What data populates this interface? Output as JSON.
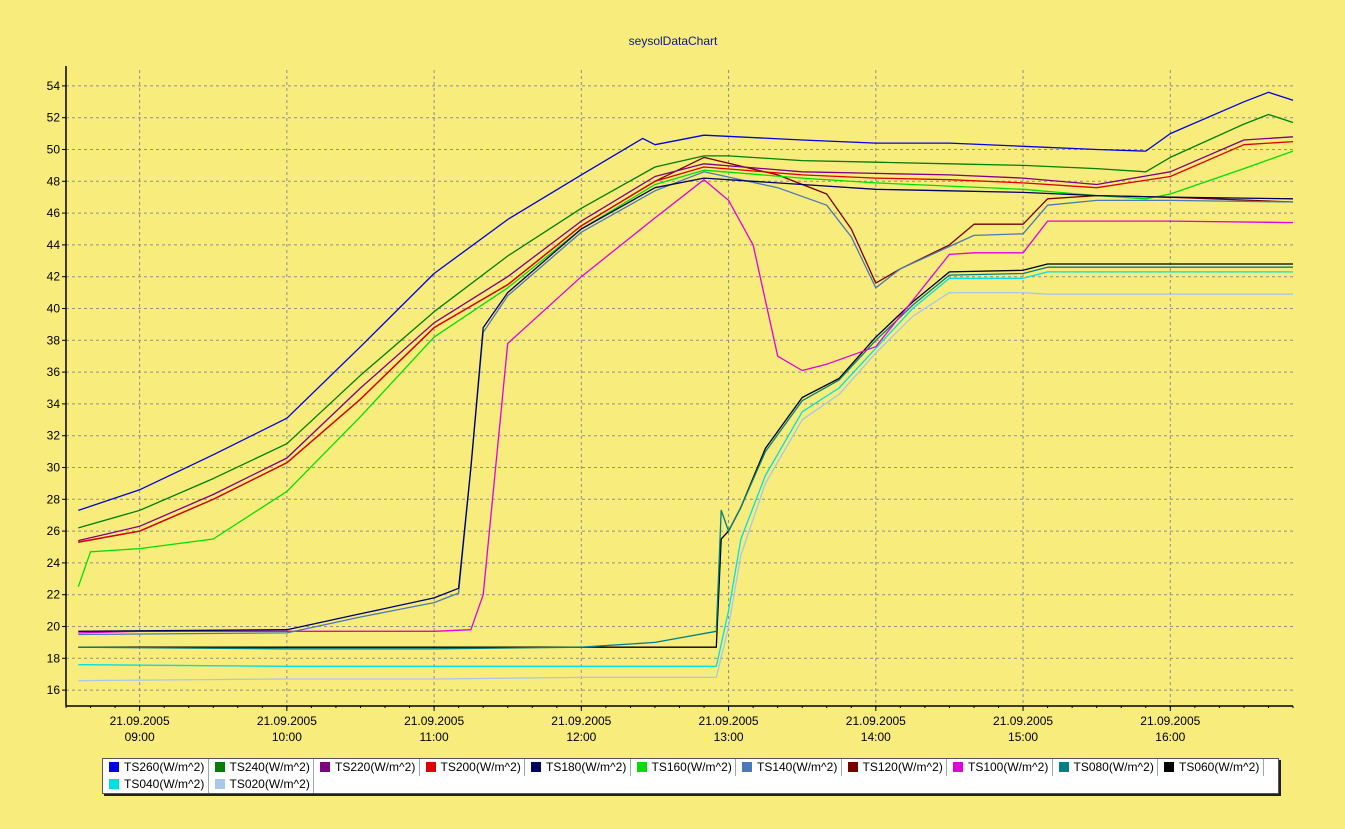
{
  "chart_data": {
    "type": "line",
    "title": "seysolDataChart",
    "xlabel": "",
    "ylabel": "",
    "xlim": [
      "08:30",
      "16:50"
    ],
    "ylim": [
      15,
      55
    ],
    "y_ticks": [
      16,
      18,
      20,
      22,
      24,
      26,
      28,
      30,
      32,
      34,
      36,
      38,
      40,
      42,
      44,
      46,
      48,
      50,
      52,
      54
    ],
    "x_ticks": [
      {
        "time": "09:00",
        "date": "21.09.2005",
        "label": "09:00"
      },
      {
        "time": "10:00",
        "date": "21.09.2005",
        "label": "10:00"
      },
      {
        "time": "11:00",
        "date": "21.09.2005",
        "label": "11:00"
      },
      {
        "time": "12:00",
        "date": "21.09.2005",
        "label": "12:00"
      },
      {
        "time": "13:00",
        "date": "21.09.2005",
        "label": "13:00"
      },
      {
        "time": "14:00",
        "date": "21.09.2005",
        "label": "14:00"
      },
      {
        "time": "15:00",
        "date": "21.09.2005",
        "label": "15:00"
      },
      {
        "time": "16:00",
        "date": "21.09.2005",
        "label": "16:00"
      }
    ],
    "grid": true,
    "legend_position": "bottom",
    "series": [
      {
        "name": "TS260(W/m^2)",
        "color": "#0000e0",
        "x": [
          "08:35",
          "09:00",
          "09:30",
          "10:00",
          "10:30",
          "11:00",
          "11:30",
          "12:00",
          "12:25",
          "12:30",
          "12:50",
          "13:30",
          "14:00",
          "14:30",
          "15:00",
          "15:30",
          "15:50",
          "16:00",
          "16:30",
          "16:40",
          "16:50"
        ],
        "y": [
          27.3,
          28.6,
          30.8,
          33.1,
          37.6,
          42.2,
          45.6,
          48.4,
          50.7,
          50.3,
          50.9,
          50.6,
          50.4,
          50.4,
          50.2,
          50.0,
          49.9,
          51.0,
          53.0,
          53.6,
          53.1
        ]
      },
      {
        "name": "TS240(W/m^2)",
        "color": "#007f00",
        "x": [
          "08:35",
          "09:00",
          "09:30",
          "10:00",
          "10:30",
          "11:00",
          "11:30",
          "12:00",
          "12:30",
          "12:50",
          "13:00",
          "13:30",
          "14:00",
          "14:30",
          "15:00",
          "15:30",
          "15:50",
          "16:00",
          "16:30",
          "16:40",
          "16:50"
        ],
        "y": [
          26.2,
          27.3,
          29.3,
          31.5,
          35.8,
          39.8,
          43.3,
          46.3,
          48.9,
          49.6,
          49.6,
          49.3,
          49.2,
          49.1,
          49.0,
          48.8,
          48.6,
          49.5,
          51.6,
          52.2,
          51.7
        ]
      },
      {
        "name": "TS220(W/m^2)",
        "color": "#800080",
        "x": [
          "08:35",
          "09:00",
          "09:30",
          "10:00",
          "10:30",
          "11:00",
          "11:30",
          "12:00",
          "12:30",
          "12:50",
          "13:30",
          "14:00",
          "14:30",
          "15:00",
          "15:30",
          "16:00",
          "16:30",
          "16:50"
        ],
        "y": [
          25.4,
          26.3,
          28.3,
          30.6,
          35.0,
          39.1,
          42.0,
          45.5,
          48.3,
          49.1,
          48.6,
          48.5,
          48.4,
          48.2,
          47.8,
          48.6,
          50.6,
          50.8
        ]
      },
      {
        "name": "TS200(W/m^2)",
        "color": "#e00000",
        "x": [
          "08:35",
          "09:00",
          "09:30",
          "10:00",
          "10:30",
          "11:00",
          "11:30",
          "12:00",
          "12:30",
          "12:50",
          "13:30",
          "14:00",
          "14:30",
          "15:00",
          "15:30",
          "16:00",
          "16:30",
          "16:50"
        ],
        "y": [
          25.3,
          26.0,
          28.0,
          30.3,
          34.3,
          38.8,
          41.5,
          45.2,
          48.0,
          48.9,
          48.4,
          48.2,
          48.1,
          47.9,
          47.6,
          48.3,
          50.3,
          50.5
        ]
      },
      {
        "name": "TS180(W/m^2)",
        "color": "#000060",
        "x": [
          "08:35",
          "10:00",
          "10:30",
          "11:00",
          "11:10",
          "11:15",
          "11:20",
          "11:30",
          "12:00",
          "12:30",
          "12:50",
          "13:30",
          "14:00",
          "14:30",
          "15:00",
          "15:30",
          "16:00",
          "16:50"
        ],
        "y": [
          19.7,
          19.8,
          20.8,
          21.8,
          22.4,
          30.0,
          38.8,
          41.0,
          45.0,
          47.6,
          48.2,
          47.8,
          47.5,
          47.4,
          47.3,
          47.1,
          47.0,
          46.9
        ]
      },
      {
        "name": "TS160(W/m^2)",
        "color": "#00e000",
        "x": [
          "08:35",
          "08:40",
          "09:00",
          "09:30",
          "10:00",
          "10:30",
          "11:00",
          "11:30",
          "12:00",
          "12:30",
          "12:50",
          "13:30",
          "14:00",
          "14:30",
          "15:00",
          "15:30",
          "15:50",
          "16:00",
          "16:30",
          "16:50"
        ],
        "y": [
          22.5,
          24.7,
          24.9,
          25.5,
          28.5,
          33.2,
          38.2,
          41.3,
          45.0,
          47.8,
          48.7,
          48.2,
          47.9,
          47.7,
          47.5,
          47.1,
          46.9,
          47.2,
          48.8,
          49.9
        ]
      },
      {
        "name": "TS140(W/m^2)",
        "color": "#4a78b8",
        "x": [
          "08:35",
          "10:00",
          "10:30",
          "11:00",
          "11:10",
          "11:15",
          "11:20",
          "11:30",
          "12:00",
          "12:30",
          "12:50",
          "13:20",
          "13:40",
          "13:50",
          "14:00",
          "14:10",
          "14:30",
          "14:40",
          "15:00",
          "15:10",
          "15:30",
          "16:00",
          "16:50"
        ],
        "y": [
          19.5,
          19.6,
          20.6,
          21.5,
          22.1,
          30.0,
          38.5,
          40.8,
          44.8,
          47.4,
          48.6,
          47.6,
          46.5,
          44.5,
          41.3,
          42.5,
          43.9,
          44.6,
          44.7,
          46.5,
          46.8,
          46.8,
          46.7
        ]
      },
      {
        "name": "TS120(W/m^2)",
        "color": "#7a0000",
        "x": [
          "08:35",
          "09:00",
          "09:30",
          "10:00",
          "10:30",
          "11:00",
          "11:30",
          "12:00",
          "12:30",
          "12:50",
          "13:20",
          "13:40",
          "13:50",
          "14:00",
          "14:10",
          "14:30",
          "14:40",
          "15:00",
          "15:10",
          "15:30",
          "16:00",
          "16:50"
        ],
        "y": [
          25.3,
          26.0,
          28.0,
          30.3,
          34.3,
          38.8,
          41.5,
          45.2,
          48.0,
          49.5,
          48.4,
          47.2,
          45.0,
          41.6,
          42.5,
          44.0,
          45.3,
          45.3,
          46.9,
          47.1,
          47.0,
          46.7
        ]
      },
      {
        "name": "TS100(W/m^2)",
        "color": "#e000e0",
        "x": [
          "08:35",
          "09:00",
          "10:00",
          "11:00",
          "11:15",
          "11:20",
          "11:30",
          "12:00",
          "12:30",
          "12:50",
          "13:00",
          "13:10",
          "13:20",
          "13:30",
          "13:40",
          "14:00",
          "14:30",
          "14:40",
          "15:00",
          "15:10",
          "15:30",
          "16:00",
          "16:50"
        ],
        "y": [
          19.6,
          19.7,
          19.7,
          19.7,
          19.8,
          22.0,
          37.8,
          42.0,
          45.7,
          48.1,
          46.8,
          44.0,
          37.0,
          36.1,
          36.5,
          37.6,
          43.4,
          43.5,
          43.5,
          45.5,
          45.5,
          45.5,
          45.4
        ]
      },
      {
        "name": "TS080(W/m^2)",
        "color": "#008080",
        "x": [
          "08:35",
          "10:00",
          "11:00",
          "12:00",
          "12:30",
          "12:55",
          "12:57",
          "13:00",
          "13:05",
          "13:15",
          "13:30",
          "13:45",
          "14:00",
          "14:15",
          "14:30",
          "15:00",
          "15:10",
          "15:30",
          "16:00",
          "16:50"
        ],
        "y": [
          18.7,
          18.6,
          18.6,
          18.7,
          19.0,
          19.7,
          27.3,
          26.0,
          27.5,
          31.0,
          34.2,
          35.5,
          38.0,
          40.2,
          42.1,
          42.2,
          42.6,
          42.6,
          42.6,
          42.6
        ]
      },
      {
        "name": "TS060(W/m^2)",
        "color": "#000000",
        "x": [
          "08:35",
          "10:00",
          "11:00",
          "12:00",
          "12:55",
          "12:57",
          "13:00",
          "13:05",
          "13:15",
          "13:30",
          "13:45",
          "14:00",
          "14:15",
          "14:30",
          "15:00",
          "15:10",
          "15:30",
          "16:00",
          "16:50"
        ],
        "y": [
          18.7,
          18.7,
          18.7,
          18.7,
          18.7,
          25.5,
          26.0,
          27.5,
          31.2,
          34.4,
          35.6,
          38.2,
          40.4,
          42.3,
          42.4,
          42.8,
          42.8,
          42.8,
          42.8
        ]
      },
      {
        "name": "TS040(W/m^2)",
        "color": "#00e0e0",
        "x": [
          "08:35",
          "10:00",
          "11:00",
          "12:00",
          "12:55",
          "13:00",
          "13:05",
          "13:15",
          "13:30",
          "13:45",
          "14:00",
          "14:15",
          "14:30",
          "15:00",
          "15:10",
          "15:30",
          "16:00",
          "16:50"
        ],
        "y": [
          17.6,
          17.5,
          17.5,
          17.5,
          17.5,
          21.0,
          25.5,
          29.5,
          33.5,
          35.0,
          37.5,
          40.0,
          41.9,
          41.9,
          42.3,
          42.3,
          42.3,
          42.3
        ]
      },
      {
        "name": "TS020(W/m^2)",
        "color": "#a8c8e8",
        "x": [
          "08:35",
          "10:00",
          "11:00",
          "12:00",
          "12:55",
          "13:00",
          "13:05",
          "13:15",
          "13:30",
          "13:45",
          "14:00",
          "14:15",
          "14:30",
          "15:00",
          "15:10",
          "15:30",
          "16:00",
          "16:50"
        ],
        "y": [
          16.6,
          16.7,
          16.7,
          16.8,
          16.8,
          20.0,
          24.5,
          29.0,
          33.0,
          34.6,
          37.2,
          39.5,
          41.0,
          41.0,
          40.9,
          40.9,
          40.9,
          40.9
        ]
      }
    ]
  }
}
